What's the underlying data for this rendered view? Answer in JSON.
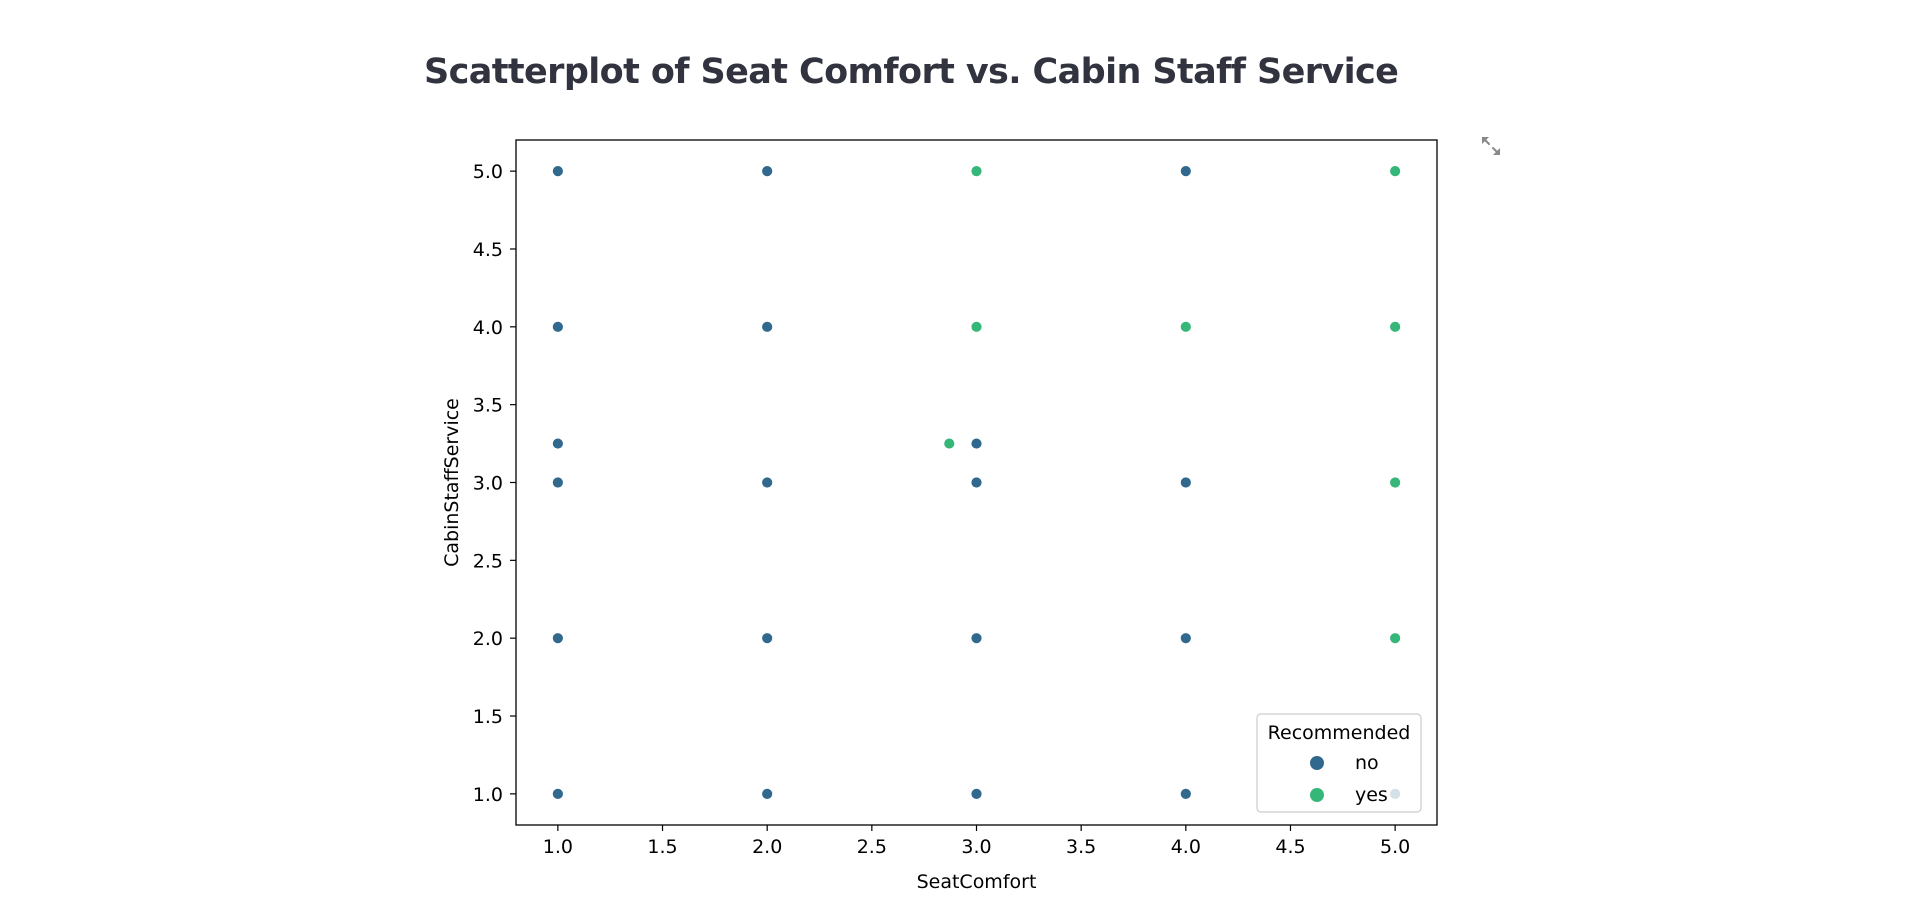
{
  "page": {
    "heading": "Scatterplot of Seat Comfort vs. Cabin Staff Service"
  },
  "toolbar": {
    "fullscreen_icon": "expand-arrows-icon"
  },
  "colors": {
    "no": "#31688e",
    "yes": "#35b779",
    "axis": "#000000",
    "icon": "#888888"
  },
  "chart_data": {
    "type": "scatter",
    "xlabel": "SeatComfort",
    "ylabel": "CabinStaffService",
    "xlim": [
      0.8,
      5.2
    ],
    "ylim": [
      0.8,
      5.2
    ],
    "xticks": [
      1.0,
      1.5,
      2.0,
      2.5,
      3.0,
      3.5,
      4.0,
      4.5,
      5.0
    ],
    "yticks": [
      1.0,
      1.5,
      2.0,
      2.5,
      3.0,
      3.5,
      4.0,
      4.5,
      5.0
    ],
    "grid": false,
    "legend": {
      "title": "Recommended",
      "placement": "lower-right",
      "entries": [
        "no",
        "yes"
      ]
    },
    "series": [
      {
        "name": "no",
        "points": [
          [
            1,
            5
          ],
          [
            1,
            4
          ],
          [
            1,
            3.25
          ],
          [
            1,
            3
          ],
          [
            1,
            2
          ],
          [
            1,
            1
          ],
          [
            2,
            5
          ],
          [
            2,
            4
          ],
          [
            2,
            3
          ],
          [
            2,
            2
          ],
          [
            2,
            1
          ],
          [
            3,
            3.25
          ],
          [
            3,
            3
          ],
          [
            3,
            2
          ],
          [
            3,
            1
          ],
          [
            4,
            5
          ],
          [
            4,
            3
          ],
          [
            4,
            2
          ],
          [
            4,
            1
          ],
          [
            5,
            1
          ]
        ]
      },
      {
        "name": "yes",
        "points": [
          [
            3,
            5
          ],
          [
            3,
            4
          ],
          [
            2.87,
            3.25
          ],
          [
            4,
            4
          ],
          [
            5,
            5
          ],
          [
            5,
            4
          ],
          [
            5,
            3
          ],
          [
            5,
            2
          ]
        ]
      }
    ]
  }
}
